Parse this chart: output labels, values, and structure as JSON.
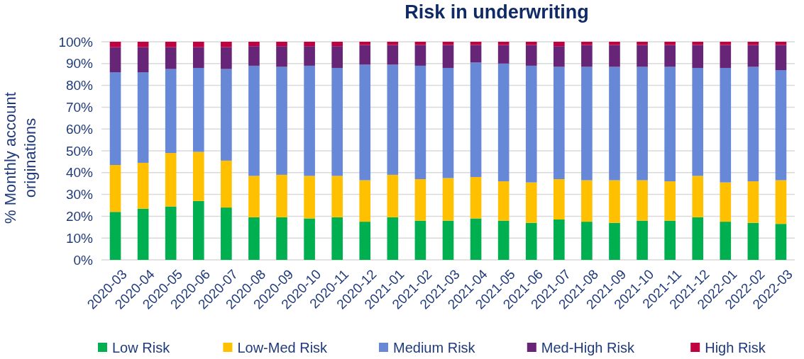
{
  "chart_data": {
    "type": "bar",
    "title": "Risk in underwriting",
    "ylabel": "% Monthly account originations",
    "stacked": true,
    "grid": "y",
    "legend": "bottom",
    "categories": [
      "2020-03",
      "2020-04",
      "2020-05",
      "2020-06",
      "2020-07",
      "2020-08",
      "2020-09",
      "2020-10",
      "2020-11",
      "2020-12",
      "2021-01",
      "2021-02",
      "2021-03",
      "2021-04",
      "2021-05",
      "2021-06",
      "2021-07",
      "2021-08",
      "2021-09",
      "2021-10",
      "2021-11",
      "2021-12",
      "2022-01",
      "2022-02",
      "2022-03"
    ],
    "ylim": [
      0,
      100
    ],
    "yticks": [
      {
        "value": 0,
        "label": "0%"
      },
      {
        "value": 10,
        "label": "10%"
      },
      {
        "value": 20,
        "label": "20%"
      },
      {
        "value": 30,
        "label": "30%"
      },
      {
        "value": 40,
        "label": "40%"
      },
      {
        "value": 50,
        "label": "50%"
      },
      {
        "value": 60,
        "label": "60%"
      },
      {
        "value": 70,
        "label": "70%"
      },
      {
        "value": 80,
        "label": "80%"
      },
      {
        "value": 90,
        "label": "90%"
      },
      {
        "value": 100,
        "label": "100%"
      }
    ],
    "series": [
      {
        "name": "Low Risk",
        "color": "#00b050",
        "values": [
          22,
          23.5,
          24.5,
          27,
          24,
          19.5,
          19.5,
          19,
          19.5,
          17.5,
          19.5,
          18,
          18,
          19,
          18,
          17,
          18.5,
          17.5,
          17,
          18,
          18,
          19.5,
          17.5,
          17,
          16.5
        ]
      },
      {
        "name": "Low-Med Risk",
        "color": "#ffc000",
        "values": [
          21.5,
          21,
          24.5,
          22.5,
          21.5,
          19,
          19.5,
          19.5,
          19,
          19,
          19.5,
          19,
          19.5,
          19,
          18,
          18.5,
          18.5,
          19,
          19.5,
          18.5,
          18,
          19,
          18,
          19,
          20
        ]
      },
      {
        "name": "Medium Risk",
        "color": "#6688d6",
        "values": [
          42.5,
          41.5,
          38.5,
          38.5,
          42,
          50.5,
          49.5,
          50.5,
          49.5,
          53,
          50.5,
          52,
          50.5,
          52.5,
          54,
          53.5,
          51.5,
          52,
          52,
          52,
          52.5,
          49.5,
          52.5,
          52.5,
          50.5
        ]
      },
      {
        "name": "Med-High Risk",
        "color": "#662577",
        "values": [
          11.5,
          11.5,
          10,
          9.5,
          10,
          9,
          9.5,
          9,
          10,
          9,
          9,
          9.5,
          10.5,
          8,
          8.5,
          9.5,
          9.5,
          10,
          10,
          10,
          10,
          10.5,
          10.5,
          10,
          11.5
        ]
      },
      {
        "name": "High Risk",
        "color": "#c00040",
        "values": [
          2.5,
          2.5,
          2.5,
          2.5,
          2.5,
          2,
          2,
          2,
          2,
          1.5,
          1.5,
          1.5,
          1.5,
          1.5,
          1.5,
          1.5,
          2,
          1.5,
          1.5,
          1.5,
          1.5,
          1.5,
          1.5,
          1.5,
          1.5
        ]
      }
    ]
  }
}
